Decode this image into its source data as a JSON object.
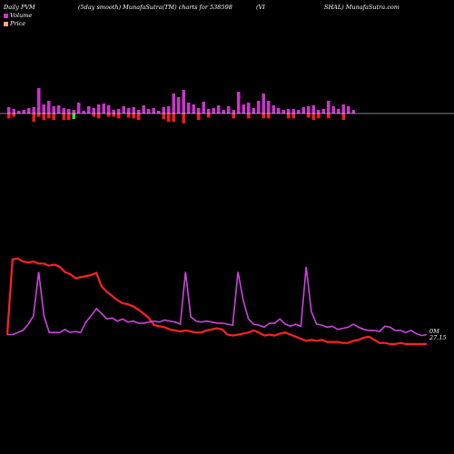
{
  "header": {
    "left": "Daily PVM",
    "smooth": "(5day smooth) MunafaSutra(TM) charts for 538598",
    "part1": "(VI",
    "part2": "SHAL) MunafaSutra.com"
  },
  "legend": [
    {
      "label": "Volume",
      "color": "#cc33cc"
    },
    {
      "label": "Price",
      "color": "#ffaa77"
    }
  ],
  "end_labels": {
    "volume": "0M",
    "price": "27.15"
  },
  "colors": {
    "background": "#000000",
    "volume_bar": "#cc33cc",
    "price_down_bar": "#ff1a1a",
    "price_up_bar": "#22ee22",
    "volume_line": "#cc44dd",
    "price_line": "#ff2222",
    "baseline": "#ffffff"
  },
  "chart_data": {
    "type": "bar+line",
    "series": [
      {
        "name": "Volume",
        "values": [
          10,
          10,
          12,
          14,
          20,
          28,
          70,
          28,
          12,
          12,
          12,
          15,
          12,
          13,
          12,
          22,
          28,
          35,
          30,
          25,
          26,
          23,
          25,
          22,
          23,
          21,
          21,
          22,
          23,
          22,
          24,
          23,
          22,
          20,
          70,
          27,
          23,
          22,
          23,
          22,
          21,
          21,
          20,
          19,
          70,
          43,
          25,
          20,
          19,
          17,
          21,
          21,
          25,
          20,
          18,
          20,
          18,
          75,
          32,
          20,
          19,
          17,
          18,
          15,
          16,
          17,
          20,
          17,
          15,
          14,
          14,
          13,
          18,
          17,
          14,
          14,
          12,
          14,
          11,
          9,
          10
        ]
      },
      {
        "name": "Price",
        "values": [
          10,
          82,
          83,
          80,
          79,
          80,
          78,
          78,
          76,
          77,
          75,
          70,
          68,
          64,
          65,
          66,
          67,
          69,
          56,
          51,
          47,
          43,
          40,
          39,
          37,
          34,
          30,
          26,
          19,
          18,
          17,
          15,
          14,
          13,
          14,
          13,
          12,
          12,
          14,
          15,
          16,
          15,
          10,
          9,
          10,
          11,
          12,
          14,
          12,
          9,
          10,
          9,
          11,
          12,
          10,
          8,
          6,
          4,
          5,
          4,
          5,
          3,
          3,
          3,
          2,
          2,
          4,
          5,
          7,
          8,
          5,
          2,
          2,
          1,
          1,
          2,
          1,
          1,
          1,
          1,
          1
        ]
      }
    ],
    "bars": [
      {
        "up": 7,
        "down": 6
      },
      {
        "up": 5,
        "down": -4
      },
      {
        "up": 3,
        "down": 0
      },
      {
        "up": 4,
        "down": 0
      },
      {
        "up": 6,
        "down": 0
      },
      {
        "up": 7,
        "down": -10
      },
      {
        "up": 28,
        "down": -4
      },
      {
        "up": 10,
        "down": -8
      },
      {
        "up": 14,
        "down": -6
      },
      {
        "up": 8,
        "down": -8
      },
      {
        "up": 9,
        "down": 0
      },
      {
        "up": 6,
        "down": -8
      },
      {
        "up": 5,
        "down": -8
      },
      {
        "up": 4,
        "down": -6
      },
      {
        "up": 12,
        "down": 0
      },
      {
        "up": 3,
        "down": 0
      },
      {
        "up": 8,
        "down": 0
      },
      {
        "up": 6,
        "down": -4
      },
      {
        "up": 10,
        "down": -6
      },
      {
        "up": 11,
        "down": 0
      },
      {
        "up": 9,
        "down": -4
      },
      {
        "up": 4,
        "down": -4
      },
      {
        "up": 5,
        "down": -6
      },
      {
        "up": 8,
        "down": 0
      },
      {
        "up": 6,
        "down": -5
      },
      {
        "up": 7,
        "down": -6
      },
      {
        "up": 4,
        "down": -8
      },
      {
        "up": 9,
        "down": 0
      },
      {
        "up": 5,
        "down": 0
      },
      {
        "up": 6,
        "down": 0
      },
      {
        "up": 3,
        "down": 0
      },
      {
        "up": 7,
        "down": -7
      },
      {
        "up": 8,
        "down": -10
      },
      {
        "up": 22,
        "down": -10
      },
      {
        "up": 18,
        "down": 0
      },
      {
        "up": 26,
        "down": -12
      },
      {
        "up": 12,
        "down": 0
      },
      {
        "up": 10,
        "down": 0
      },
      {
        "up": 6,
        "down": -8
      },
      {
        "up": 13,
        "down": 0
      },
      {
        "up": 5,
        "down": -5
      },
      {
        "up": 6,
        "down": 0
      },
      {
        "up": 9,
        "down": 0
      },
      {
        "up": 4,
        "down": 0
      },
      {
        "up": 8,
        "down": 0
      },
      {
        "up": 4,
        "down": -6
      },
      {
        "up": 24,
        "down": 0
      },
      {
        "up": 10,
        "down": 0
      },
      {
        "up": 12,
        "down": -6
      },
      {
        "up": 6,
        "down": 0
      },
      {
        "up": 14,
        "down": 0
      },
      {
        "up": 22,
        "down": -6
      },
      {
        "up": 14,
        "down": -6
      },
      {
        "up": 9,
        "down": 0
      },
      {
        "up": 6,
        "down": 0
      },
      {
        "up": 4,
        "down": 0
      },
      {
        "up": 5,
        "down": -6
      },
      {
        "up": 5,
        "down": -6
      },
      {
        "up": 4,
        "down": 0
      },
      {
        "up": 7,
        "down": 0
      },
      {
        "up": 8,
        "down": -5
      },
      {
        "up": 9,
        "down": -8
      },
      {
        "up": 4,
        "down": -6
      },
      {
        "up": 5,
        "down": 0
      },
      {
        "up": 14,
        "down": -6
      },
      {
        "up": 8,
        "down": 0
      },
      {
        "up": 5,
        "down": 0
      },
      {
        "up": 10,
        "down": -8
      },
      {
        "up": 8,
        "down": 0
      },
      {
        "up": 4,
        "down": 0
      }
    ],
    "bar_signs": [
      "d",
      "d",
      "d",
      "g",
      "d",
      "d",
      "d",
      "d",
      "d",
      "d",
      "d",
      "d",
      "d",
      "g",
      "d",
      "d",
      "d",
      "d",
      "d",
      "d",
      "d",
      "d",
      "d",
      "d",
      "d",
      "d",
      "d",
      "d",
      "d",
      "d",
      "d",
      "d",
      "d",
      "d",
      "g",
      "d",
      "d",
      "d",
      "d",
      "g",
      "d",
      "g",
      "d",
      "d",
      "d",
      "d",
      "d",
      "d",
      "d",
      "d",
      "d",
      "d",
      "d",
      "d",
      "d",
      "d",
      "d",
      "d",
      "g",
      "d",
      "d",
      "d",
      "d",
      "d",
      "d",
      "d",
      "d",
      "d",
      "d",
      "d"
    ]
  }
}
